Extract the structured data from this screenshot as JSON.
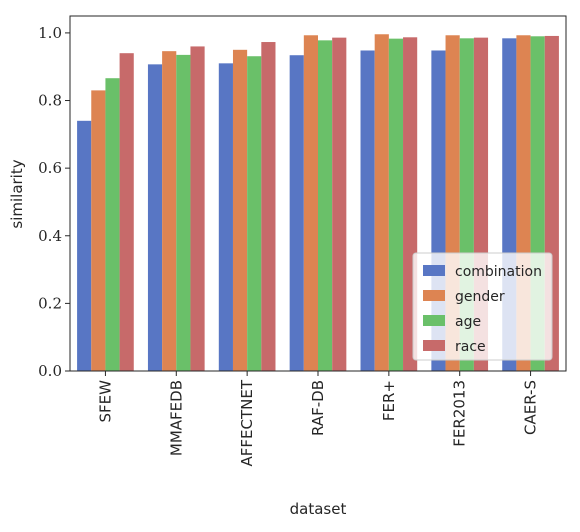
{
  "chart_data": {
    "type": "bar",
    "xlabel": "dataset",
    "ylabel": "similarity",
    "ylim": [
      0,
      1.05
    ],
    "yticks": [
      "0.0",
      "0.2",
      "0.4",
      "0.6",
      "0.8",
      "1.0"
    ],
    "grid": false,
    "legend_position": "lower-right",
    "categories": [
      "SFEW",
      "MMAFEDB",
      "AFFECTNET",
      "RAF-DB",
      "FER+",
      "FER2013",
      "CAER-S"
    ],
    "series": [
      {
        "name": "combination",
        "color": "#5876c4",
        "values": [
          0.74,
          0.907,
          0.91,
          0.934,
          0.948,
          0.948,
          0.984
        ]
      },
      {
        "name": "gender",
        "color": "#dd8452",
        "values": [
          0.83,
          0.946,
          0.95,
          0.993,
          0.996,
          0.993,
          0.993
        ]
      },
      {
        "name": "age",
        "color": "#6ac069",
        "values": [
          0.866,
          0.935,
          0.931,
          0.978,
          0.983,
          0.984,
          0.99
        ]
      },
      {
        "name": "race",
        "color": "#c76a6a",
        "values": [
          0.94,
          0.96,
          0.973,
          0.986,
          0.987,
          0.986,
          0.991
        ]
      }
    ]
  }
}
